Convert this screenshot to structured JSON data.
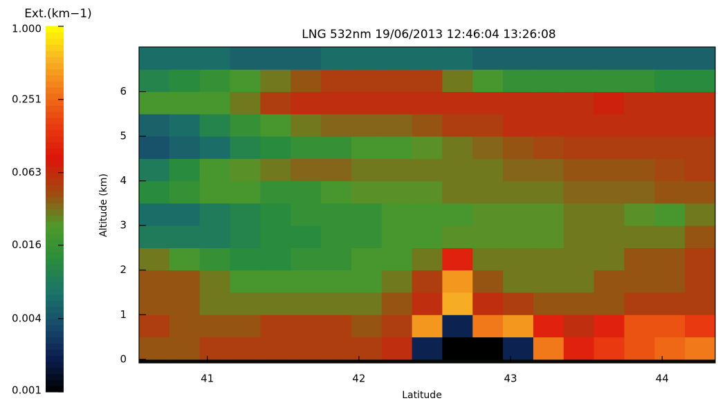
{
  "chart_data": {
    "type": "heatmap",
    "title": "LNG 532nm 19/06/2013 12:46:04 13:26:08",
    "xlabel": "Latitude",
    "ylabel": "Altitude (km)",
    "x": [
      40.65,
      40.85,
      41.05,
      41.25,
      41.45,
      41.65,
      41.85,
      42.05,
      42.25,
      42.45,
      42.65,
      42.85,
      43.05,
      43.25,
      43.45,
      43.65,
      43.85,
      44.05,
      44.25
    ],
    "y": [
      0.25,
      0.75,
      1.25,
      1.75,
      2.25,
      2.75,
      3.25,
      3.75,
      4.25,
      4.75,
      5.25,
      5.75,
      6.25,
      6.75
    ],
    "z": [
      [
        0.04,
        0.04,
        0.05,
        0.05,
        0.05,
        0.05,
        0.05,
        0.05,
        0.06,
        0.002,
        0.001,
        0.001,
        0.002,
        0.3,
        0.1,
        0.15,
        0.2,
        0.25,
        0.3
      ],
      [
        0.05,
        0.04,
        0.04,
        0.04,
        0.05,
        0.05,
        0.05,
        0.04,
        0.05,
        0.4,
        0.002,
        0.3,
        0.4,
        0.1,
        0.06,
        0.1,
        0.2,
        0.2,
        0.15
      ],
      [
        0.04,
        0.04,
        0.03,
        0.03,
        0.03,
        0.03,
        0.03,
        0.03,
        0.04,
        0.06,
        0.5,
        0.06,
        0.05,
        0.04,
        0.04,
        0.04,
        0.05,
        0.05,
        0.05
      ],
      [
        0.04,
        0.04,
        0.03,
        0.02,
        0.02,
        0.02,
        0.02,
        0.02,
        0.03,
        0.05,
        0.4,
        0.04,
        0.03,
        0.03,
        0.03,
        0.04,
        0.04,
        0.04,
        0.05
      ],
      [
        0.03,
        0.02,
        0.015,
        0.012,
        0.012,
        0.015,
        0.015,
        0.02,
        0.02,
        0.03,
        0.1,
        0.03,
        0.03,
        0.03,
        0.03,
        0.03,
        0.04,
        0.04,
        0.05
      ],
      [
        0.008,
        0.008,
        0.008,
        0.01,
        0.012,
        0.012,
        0.015,
        0.015,
        0.02,
        0.02,
        0.025,
        0.025,
        0.025,
        0.025,
        0.03,
        0.03,
        0.03,
        0.03,
        0.04
      ],
      [
        0.006,
        0.006,
        0.008,
        0.01,
        0.012,
        0.015,
        0.015,
        0.015,
        0.02,
        0.02,
        0.02,
        0.025,
        0.025,
        0.025,
        0.03,
        0.03,
        0.025,
        0.02,
        0.03
      ],
      [
        0.012,
        0.015,
        0.02,
        0.02,
        0.015,
        0.015,
        0.02,
        0.025,
        0.025,
        0.025,
        0.03,
        0.03,
        0.03,
        0.03,
        0.035,
        0.035,
        0.035,
        0.04,
        0.04
      ],
      [
        0.008,
        0.012,
        0.02,
        0.025,
        0.03,
        0.035,
        0.035,
        0.03,
        0.03,
        0.03,
        0.03,
        0.03,
        0.035,
        0.035,
        0.04,
        0.04,
        0.04,
        0.045,
        0.05
      ],
      [
        0.004,
        0.005,
        0.006,
        0.01,
        0.012,
        0.015,
        0.015,
        0.02,
        0.02,
        0.025,
        0.03,
        0.035,
        0.04,
        0.045,
        0.05,
        0.05,
        0.05,
        0.05,
        0.05
      ],
      [
        0.005,
        0.006,
        0.01,
        0.015,
        0.02,
        0.03,
        0.035,
        0.035,
        0.035,
        0.04,
        0.05,
        0.05,
        0.06,
        0.06,
        0.06,
        0.06,
        0.06,
        0.06,
        0.06
      ],
      [
        0.02,
        0.02,
        0.02,
        0.03,
        0.05,
        0.06,
        0.06,
        0.06,
        0.06,
        0.06,
        0.06,
        0.06,
        0.06,
        0.06,
        0.06,
        0.07,
        0.06,
        0.06,
        0.06
      ],
      [
        0.01,
        0.012,
        0.015,
        0.02,
        0.03,
        0.04,
        0.05,
        0.05,
        0.05,
        0.05,
        0.03,
        0.02,
        0.015,
        0.015,
        0.015,
        0.015,
        0.015,
        0.012,
        0.012
      ],
      [
        0.006,
        0.006,
        0.006,
        0.005,
        0.005,
        0.005,
        0.006,
        0.006,
        0.006,
        0.006,
        0.006,
        0.005,
        0.005,
        0.005,
        0.005,
        0.005,
        0.005,
        0.005,
        0.005
      ]
    ],
    "xlim": [
      40.55,
      44.35
    ],
    "ylim": [
      -0.08,
      7.0
    ],
    "xticks": [
      41,
      42,
      43,
      44
    ],
    "yticks": [
      0,
      1,
      2,
      3,
      4,
      5,
      6
    ],
    "background": "#050805",
    "colorbar": {
      "title": "Ext.(km−1)",
      "scale": "log",
      "lim": [
        0.001,
        1
      ],
      "ticks": [
        {
          "value": 1,
          "label": "1.000"
        },
        0.251,
        0.063,
        0.016,
        0.004,
        0.001
      ],
      "colors": [
        "#000000",
        "#0b1d4d",
        "#17496a",
        "#1c7468",
        "#2a8c3c",
        "#4f9a2a",
        "#a04a10",
        "#dc140c",
        "#e83a10",
        "#f07418",
        "#f8b424",
        "#ffff00"
      ]
    }
  }
}
